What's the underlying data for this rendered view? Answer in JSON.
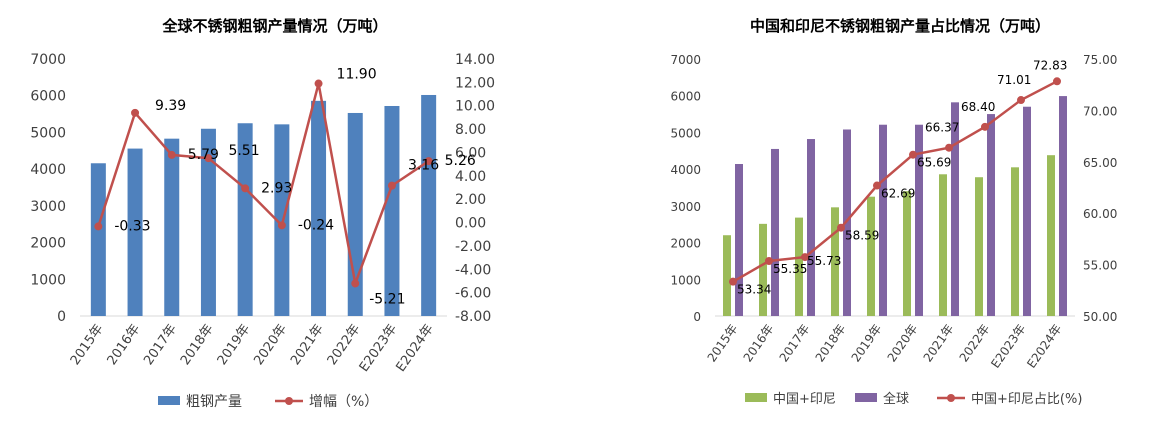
{
  "chart_data": [
    {
      "type": "bar",
      "title": "全球不锈钢粗钢产量情况（万吨）",
      "categories": [
        "2015年",
        "2016年",
        "2017年",
        "2018年",
        "2019年",
        "2020年",
        "2021年",
        "2022年",
        "E2023年",
        "E2024年"
      ],
      "series": [
        {
          "name": "粗钢产量",
          "type": "bar",
          "axis": "left",
          "color": "#4F81BD",
          "values": [
            4160,
            4560,
            4830,
            5100,
            5250,
            5220,
            5860,
            5530,
            5720,
            6020
          ]
        },
        {
          "name": "增幅（%）",
          "type": "line",
          "axis": "right",
          "color": "#C0504D",
          "values": [
            -0.33,
            9.39,
            5.79,
            5.51,
            2.93,
            -0.24,
            11.9,
            -5.21,
            3.16,
            5.26
          ]
        }
      ],
      "data_labels": [
        "-0.33",
        "9.39",
        "5.79",
        "5.51",
        "2.93",
        "-0.24",
        "11.90",
        "-5.21",
        "3.16",
        "5.26"
      ],
      "left_axis": {
        "min": 0,
        "max": 7000,
        "step": 1000,
        "ticks": [
          "0",
          "1000",
          "2000",
          "3000",
          "4000",
          "5000",
          "6000",
          "7000"
        ]
      },
      "right_axis": {
        "min": -8,
        "max": 14,
        "step": 2,
        "ticks": [
          "-8.00",
          "-6.00",
          "-4.00",
          "-2.00",
          "0.00",
          "2.00",
          "4.00",
          "6.00",
          "8.00",
          "10.00",
          "12.00",
          "14.00"
        ]
      },
      "legend": [
        "粗钢产量",
        "增幅（%）"
      ],
      "legend_position": "bottom",
      "grid": false
    },
    {
      "type": "bar",
      "title": "中国和印尼不锈钢粗钢产量占比情况（万吨）",
      "categories": [
        "2015年",
        "2016年",
        "2017年",
        "2018年",
        "2019年",
        "2020年",
        "2021年",
        "2022年",
        "E2023年",
        "E2024年"
      ],
      "series": [
        {
          "name": "中国+印尼",
          "type": "bar",
          "axis": "left",
          "color": "#9BBB59",
          "values": [
            2200,
            2510,
            2680,
            2960,
            3250,
            3400,
            3860,
            3780,
            4050,
            4380
          ]
        },
        {
          "name": "全球",
          "type": "bar",
          "axis": "left",
          "color": "#8064A2",
          "values": [
            4140,
            4550,
            4820,
            5080,
            5210,
            5210,
            5820,
            5500,
            5700,
            5990
          ]
        },
        {
          "name": "中国+印尼占比(%)",
          "type": "line",
          "axis": "right",
          "color": "#C0504D",
          "values": [
            53.34,
            55.35,
            55.73,
            58.59,
            62.69,
            65.69,
            66.37,
            68.4,
            71.01,
            72.83
          ]
        }
      ],
      "data_labels": [
        "53.34",
        "55.35",
        "55.73",
        "58.59",
        "62.69",
        "65.69",
        "66.37",
        "68.40",
        "71.01",
        "72.83"
      ],
      "left_axis": {
        "min": 0,
        "max": 7000,
        "step": 1000,
        "ticks": [
          "0",
          "1000",
          "2000",
          "3000",
          "4000",
          "5000",
          "6000",
          "7000"
        ]
      },
      "right_axis": {
        "min": 50,
        "max": 75,
        "step": 5,
        "ticks": [
          "50.00",
          "55.00",
          "60.00",
          "65.00",
          "70.00",
          "75.00"
        ]
      },
      "legend": [
        "中国+印尼",
        "全球",
        "中国+印尼占比(%)"
      ],
      "legend_position": "bottom",
      "grid": false
    }
  ]
}
